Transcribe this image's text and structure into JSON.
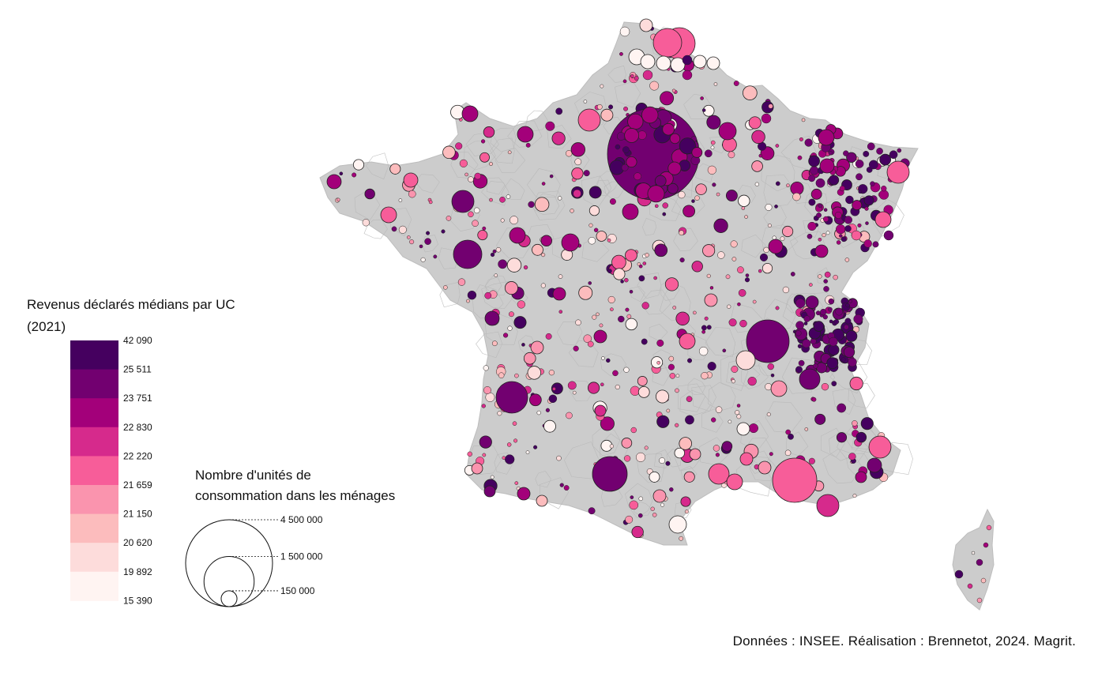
{
  "legend": {
    "title_line1": "Revenus déclarés médians par UC",
    "title_line2": "(2021)",
    "classes": [
      {
        "upper": "42 090",
        "lower": "25 511",
        "color": "#45005f"
      },
      {
        "upper": "25 511",
        "lower": "23 751",
        "color": "#720070"
      },
      {
        "upper": "23 751",
        "lower": "22 830",
        "color": "#a3007a"
      },
      {
        "upper": "22 830",
        "lower": "22 220",
        "color": "#d62a8c"
      },
      {
        "upper": "22 220",
        "lower": "21 659",
        "color": "#f75d99"
      },
      {
        "upper": "21 659",
        "lower": "21 150",
        "color": "#fa94ae"
      },
      {
        "upper": "21 150",
        "lower": "20 620",
        "color": "#fcbcbd"
      },
      {
        "upper": "20 620",
        "lower": "19 892",
        "color": "#fddcdb"
      },
      {
        "upper": "19 892",
        "lower": "15 390",
        "color": "#fff4f2"
      }
    ],
    "breaks": [
      "42 090",
      "25 511",
      "23 751",
      "22 830",
      "22 220",
      "21 659",
      "21 150",
      "20 620",
      "19 892",
      "15 390"
    ]
  },
  "size_legend": {
    "title_line1": "Nombre d'unités de",
    "title_line2": "consommation dans les ménages",
    "values": [
      {
        "label": "4 500 000",
        "value": 4500000
      },
      {
        "label": "1 500 000",
        "value": 1500000
      },
      {
        "label": "150 000",
        "value": 150000
      }
    ]
  },
  "credit": "Données : INSEE. Réalisation : Brennetot, 2024. Magrit.",
  "colors": {
    "land": "#cccccc",
    "boundary": "#b3b3b3",
    "background": "#ffffff"
  }
}
